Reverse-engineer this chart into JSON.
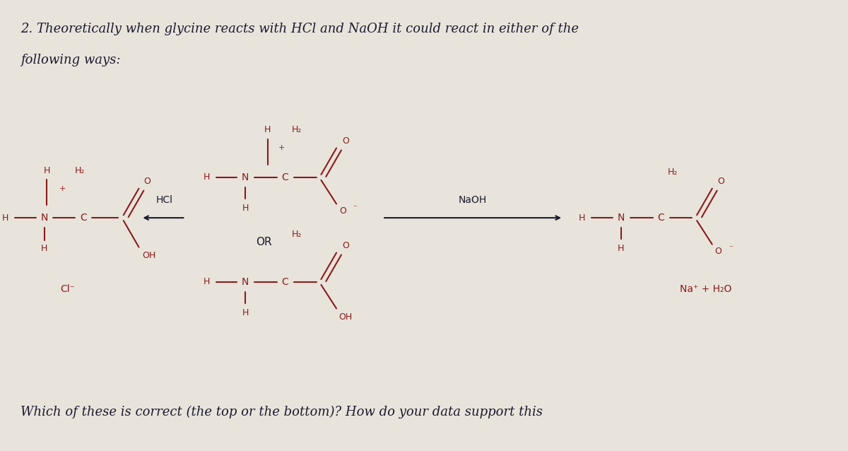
{
  "bg_color": "#e8e4dc",
  "title_line1": "2. Theoretically when glycine reacts with HCl and NaOH it could react in either of the",
  "title_line2": "following ways:",
  "footer": "Which of these is correct (the top or the bottom)? How do your data support this",
  "text_color": "#1a1a2e",
  "chem_color": "#8B1A1A",
  "figsize": [
    12,
    6.38
  ],
  "dpi": 100
}
